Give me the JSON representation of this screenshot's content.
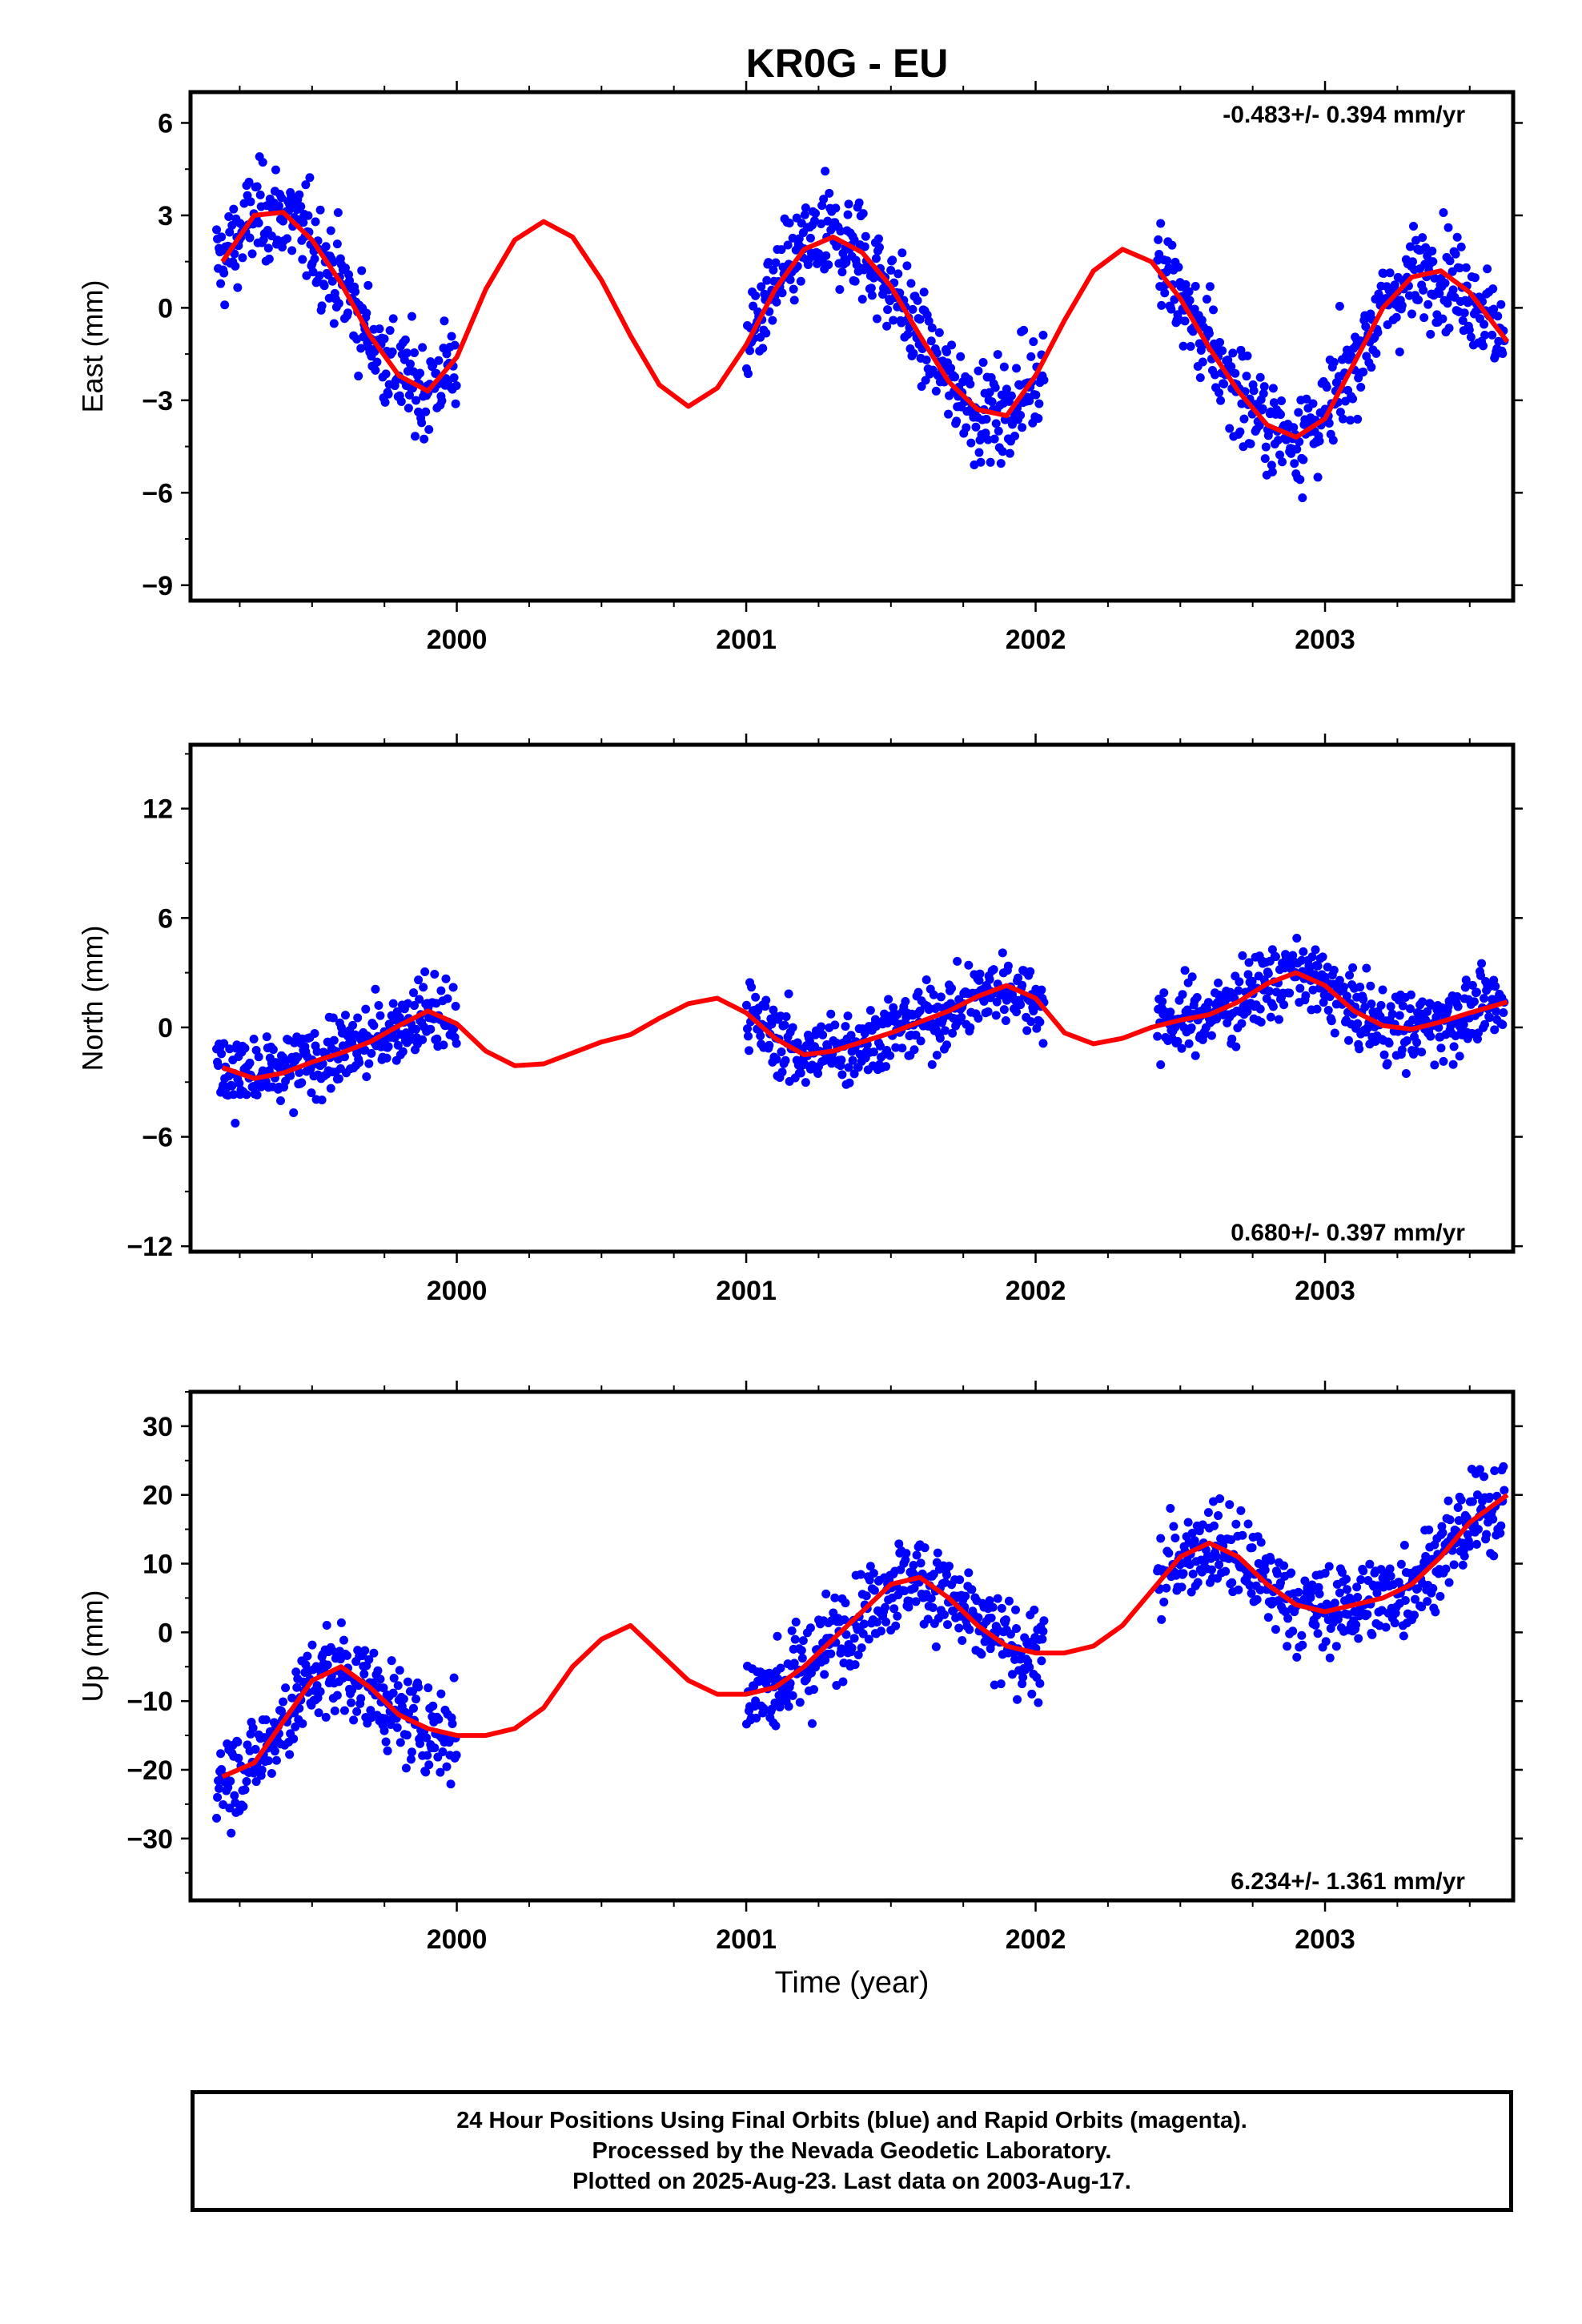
{
  "title": "KR0G - EU",
  "chart_data": [
    {
      "type": "scatter",
      "ylabel": "East (mm)",
      "ylim": [
        -9.5,
        7
      ],
      "yticks": [
        6,
        3,
        0,
        -3,
        -6,
        -9
      ],
      "xlim": [
        1999.08,
        2003.65
      ],
      "xticks": [
        2000,
        2001,
        2002,
        2003
      ],
      "rate_text": "-0.483+/- 0.394 mm/yr",
      "rate_position": "top-right",
      "series": [
        {
          "role": "points",
          "color": "#0000ff"
        },
        {
          "role": "fit",
          "color": "#ff0000",
          "x": [
            1999.19,
            1999.3,
            1999.4,
            1999.5,
            1999.6,
            1999.7,
            1999.8,
            1999.9,
            2000.0,
            2000.1,
            2000.2,
            2000.3,
            2000.4,
            2000.5,
            2000.6,
            2000.7,
            2000.8,
            2000.9,
            2001.0,
            2001.1,
            2001.2,
            2001.3,
            2001.4,
            2001.5,
            2001.6,
            2001.7,
            2001.8,
            2001.9,
            2002.0,
            2002.1,
            2002.2,
            2002.3,
            2002.4,
            2002.5,
            2002.6,
            2002.7,
            2002.8,
            2002.9,
            2003.0,
            2003.1,
            2003.2,
            2003.3,
            2003.4,
            2003.5,
            2003.63
          ],
          "y": [
            1.5,
            3.0,
            3.1,
            2.2,
            0.8,
            -0.9,
            -2.2,
            -2.7,
            -1.6,
            0.6,
            2.2,
            2.8,
            2.3,
            0.9,
            -0.9,
            -2.5,
            -3.2,
            -2.6,
            -1.2,
            0.6,
            1.9,
            2.3,
            1.8,
            0.7,
            -0.9,
            -2.4,
            -3.3,
            -3.5,
            -2.2,
            -0.4,
            1.2,
            1.9,
            1.5,
            0.3,
            -1.3,
            -2.7,
            -3.8,
            -4.2,
            -3.6,
            -1.8,
            0.0,
            1.0,
            1.2,
            0.5,
            -1.1
          ]
        }
      ]
    },
    {
      "type": "scatter",
      "ylabel": "North (mm)",
      "ylim": [
        -12.3,
        15.5
      ],
      "yticks": [
        12,
        6,
        0,
        -6,
        -12
      ],
      "xlim": [
        1999.08,
        2003.65
      ],
      "xticks": [
        2000,
        2001,
        2002,
        2003
      ],
      "rate_text": "0.680+/- 0.397 mm/yr",
      "rate_position": "bottom-right",
      "series": [
        {
          "role": "points",
          "color": "#0000ff"
        },
        {
          "role": "fit",
          "color": "#ff0000",
          "x": [
            1999.19,
            1999.3,
            1999.4,
            1999.5,
            1999.6,
            1999.7,
            1999.8,
            1999.9,
            2000.0,
            2000.1,
            2000.2,
            2000.3,
            2000.4,
            2000.5,
            2000.6,
            2000.7,
            2000.8,
            2000.9,
            2001.0,
            2001.1,
            2001.2,
            2001.3,
            2001.4,
            2001.5,
            2001.6,
            2001.7,
            2001.8,
            2001.9,
            2002.0,
            2002.1,
            2002.2,
            2002.3,
            2002.4,
            2002.5,
            2002.6,
            2002.7,
            2002.8,
            2002.9,
            2003.0,
            2003.1,
            2003.2,
            2003.3,
            2003.4,
            2003.5,
            2003.63
          ],
          "y": [
            -2.2,
            -2.8,
            -2.5,
            -1.9,
            -1.4,
            -0.8,
            0.1,
            0.9,
            0.2,
            -1.3,
            -2.1,
            -2.0,
            -1.4,
            -0.8,
            -0.4,
            0.5,
            1.3,
            1.6,
            0.8,
            -0.6,
            -1.5,
            -1.3,
            -0.8,
            -0.3,
            0.3,
            0.9,
            1.7,
            2.3,
            1.6,
            -0.3,
            -0.9,
            -0.6,
            0.0,
            0.4,
            0.7,
            1.4,
            2.4,
            3.0,
            2.3,
            0.9,
            0.1,
            -0.1,
            0.3,
            0.8,
            1.4
          ]
        }
      ]
    },
    {
      "type": "scatter",
      "ylabel": "Up (mm)",
      "ylim": [
        -39,
        35
      ],
      "yticks": [
        30,
        20,
        10,
        0,
        -10,
        -20,
        -30
      ],
      "xlim": [
        1999.08,
        2003.65
      ],
      "xticks": [
        2000,
        2001,
        2002,
        2003
      ],
      "xlabel": "Time (year)",
      "rate_text": "6.234+/- 1.361 mm/yr",
      "rate_position": "bottom-right",
      "series": [
        {
          "role": "points",
          "color": "#0000ff"
        },
        {
          "role": "fit",
          "color": "#ff0000",
          "x": [
            1999.19,
            1999.3,
            1999.4,
            1999.5,
            1999.6,
            1999.7,
            1999.8,
            1999.9,
            2000.0,
            2000.1,
            2000.2,
            2000.3,
            2000.4,
            2000.5,
            2000.6,
            2000.7,
            2000.8,
            2000.9,
            2001.0,
            2001.1,
            2001.2,
            2001.3,
            2001.4,
            2001.5,
            2001.6,
            2001.7,
            2001.8,
            2001.9,
            2002.0,
            2002.1,
            2002.2,
            2002.3,
            2002.4,
            2002.5,
            2002.6,
            2002.7,
            2002.8,
            2002.9,
            2003.0,
            2003.1,
            2003.2,
            2003.3,
            2003.4,
            2003.5,
            2003.63
          ],
          "y": [
            -21,
            -19,
            -13,
            -7,
            -5,
            -8,
            -12,
            -14,
            -15,
            -15,
            -14,
            -11,
            -5,
            -1,
            1,
            -3,
            -7,
            -9,
            -9,
            -8,
            -5,
            -1,
            3,
            7,
            8,
            5,
            1,
            -2,
            -3,
            -3,
            -2,
            1,
            6,
            11,
            13,
            11,
            7,
            4,
            3,
            4,
            5,
            7,
            11,
            16,
            20
          ]
        }
      ]
    }
  ],
  "footer": {
    "line1": "24 Hour Positions Using Final Orbits (blue) and Rapid Orbits (magenta).",
    "line2": "Processed by the Nevada Geodetic Laboratory.",
    "line3": "Plotted on 2025-Aug-23. Last data on 2003-Aug-17."
  }
}
